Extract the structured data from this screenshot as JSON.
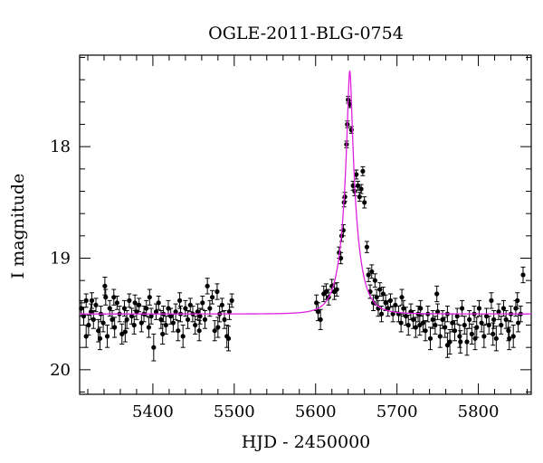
{
  "chart_data": {
    "type": "scatter",
    "title": "OGLE-2011-BLG-0754",
    "xlabel": "HJD - 2450000",
    "ylabel": "I magnitude",
    "xlim": [
      5310,
      5865
    ],
    "ylim": [
      20.22,
      17.18
    ],
    "y_inverted": true,
    "x_ticks": [
      5400,
      5500,
      5600,
      5700,
      5800
    ],
    "y_ticks": [
      18,
      19,
      20
    ],
    "grid": false,
    "colors": {
      "points": "#000000",
      "model": "#e020e0",
      "frame": "#000000"
    },
    "model": {
      "t0": 5642,
      "tE": 18,
      "u0": 0.135,
      "baseline_mag": 19.5,
      "color": "#e020e0"
    },
    "series": [
      {
        "points": [
          [
            5312,
            19.45,
            0.07
          ],
          [
            5315,
            19.52,
            0.08
          ],
          [
            5318,
            19.38,
            0.06
          ],
          [
            5321,
            19.6,
            0.09
          ],
          [
            5324,
            19.48,
            0.07
          ],
          [
            5327,
            19.55,
            0.08
          ],
          [
            5330,
            19.42,
            0.06
          ],
          [
            5333,
            19.65,
            0.1
          ],
          [
            5336,
            19.5,
            0.07
          ],
          [
            5339,
            19.58,
            0.08
          ],
          [
            5342,
            19.35,
            0.07
          ],
          [
            5344,
            19.7,
            0.1
          ],
          [
            5347,
            19.45,
            0.07
          ],
          [
            5350,
            19.55,
            0.08
          ],
          [
            5353,
            19.62,
            0.09
          ],
          [
            5356,
            19.4,
            0.06
          ],
          [
            5359,
            19.5,
            0.07
          ],
          [
            5362,
            19.68,
            0.09
          ],
          [
            5365,
            19.45,
            0.07
          ],
          [
            5368,
            19.55,
            0.08
          ],
          [
            5371,
            19.38,
            0.06
          ],
          [
            5374,
            19.52,
            0.07
          ],
          [
            5377,
            19.6,
            0.08
          ],
          [
            5380,
            19.48,
            0.07
          ],
          [
            5383,
            19.42,
            0.06
          ],
          [
            5386,
            19.58,
            0.08
          ],
          [
            5389,
            19.5,
            0.07
          ],
          [
            5392,
            19.45,
            0.07
          ],
          [
            5395,
            19.62,
            0.09
          ],
          [
            5398,
            19.52,
            0.07
          ],
          [
            5401,
            19.8,
            0.12
          ],
          [
            5404,
            19.48,
            0.07
          ],
          [
            5407,
            19.4,
            0.06
          ],
          [
            5410,
            19.55,
            0.08
          ],
          [
            5413,
            19.5,
            0.07
          ],
          [
            5416,
            19.6,
            0.08
          ],
          [
            5419,
            19.45,
            0.07
          ],
          [
            5422,
            19.52,
            0.07
          ],
          [
            5425,
            19.58,
            0.08
          ],
          [
            5428,
            19.48,
            0.07
          ],
          [
            5431,
            19.65,
            0.09
          ],
          [
            5434,
            19.5,
            0.07
          ],
          [
            5437,
            19.7,
            0.1
          ],
          [
            5440,
            19.45,
            0.07
          ],
          [
            5443,
            19.55,
            0.08
          ],
          [
            5446,
            19.42,
            0.06
          ],
          [
            5449,
            19.5,
            0.07
          ],
          [
            5452,
            19.6,
            0.08
          ],
          [
            5455,
            19.48,
            0.07
          ],
          [
            5458,
            19.52,
            0.07
          ],
          [
            5461,
            19.4,
            0.06
          ],
          [
            5464,
            19.55,
            0.08
          ],
          [
            5467,
            19.25,
            0.07
          ],
          [
            5470,
            19.45,
            0.07
          ],
          [
            5473,
            19.35,
            0.06
          ],
          [
            5476,
            19.65,
            0.09
          ],
          [
            5479,
            19.3,
            0.07
          ],
          [
            5482,
            19.5,
            0.07
          ],
          [
            5485,
            19.42,
            0.06
          ],
          [
            5488,
            19.55,
            0.08
          ],
          [
            5491,
            19.7,
            0.1
          ],
          [
            5494,
            19.48,
            0.07
          ],
          [
            5497,
            19.38,
            0.06
          ],
          [
            5318,
            19.7,
            0.1
          ],
          [
            5325,
            19.38,
            0.07
          ],
          [
            5335,
            19.72,
            0.1
          ],
          [
            5341,
            19.25,
            0.08
          ],
          [
            5352,
            19.35,
            0.07
          ],
          [
            5366,
            19.66,
            0.09
          ],
          [
            5378,
            19.4,
            0.07
          ],
          [
            5396,
            19.35,
            0.07
          ],
          [
            5412,
            19.68,
            0.09
          ],
          [
            5433,
            19.38,
            0.07
          ],
          [
            5457,
            19.65,
            0.09
          ],
          [
            5480,
            19.62,
            0.09
          ],
          [
            5493,
            19.72,
            0.11
          ],
          [
            5601,
            19.4,
            0.07
          ],
          [
            5603,
            19.48,
            0.08
          ],
          [
            5606,
            19.55,
            0.09
          ],
          [
            5610,
            19.32,
            0.07
          ],
          [
            5613,
            19.3,
            0.07
          ],
          [
            5616,
            19.35,
            0.07
          ],
          [
            5620,
            19.25,
            0.06
          ],
          [
            5623,
            19.3,
            0.07
          ],
          [
            5626,
            19.28,
            0.06
          ],
          [
            5629,
            18.95,
            0.05
          ],
          [
            5631,
            19.0,
            0.05
          ],
          [
            5632,
            18.8,
            0.05
          ],
          [
            5634,
            18.75,
            0.05
          ],
          [
            5635,
            18.5,
            0.04
          ],
          [
            5636,
            18.45,
            0.04
          ],
          [
            5638,
            17.98,
            0.03
          ],
          [
            5639,
            17.8,
            0.03
          ],
          [
            5640,
            17.58,
            0.03
          ],
          [
            5642,
            17.62,
            0.03
          ],
          [
            5644,
            17.85,
            0.03
          ],
          [
            5646,
            18.35,
            0.04
          ],
          [
            5648,
            18.4,
            0.04
          ],
          [
            5650,
            18.25,
            0.04
          ],
          [
            5652,
            18.35,
            0.04
          ],
          [
            5654,
            18.45,
            0.04
          ],
          [
            5656,
            18.38,
            0.04
          ],
          [
            5658,
            18.22,
            0.04
          ],
          [
            5660,
            18.5,
            0.05
          ],
          [
            5663,
            18.9,
            0.05
          ],
          [
            5665,
            19.15,
            0.06
          ],
          [
            5667,
            19.3,
            0.06
          ],
          [
            5669,
            19.12,
            0.06
          ],
          [
            5671,
            19.4,
            0.07
          ],
          [
            5673,
            19.2,
            0.06
          ],
          [
            5675,
            19.35,
            0.07
          ],
          [
            5677,
            19.45,
            0.07
          ],
          [
            5679,
            19.28,
            0.06
          ],
          [
            5681,
            19.5,
            0.07
          ],
          [
            5683,
            19.32,
            0.06
          ],
          [
            5686,
            19.4,
            0.07
          ],
          [
            5689,
            19.45,
            0.07
          ],
          [
            5692,
            19.38,
            0.06
          ],
          [
            5695,
            19.5,
            0.07
          ],
          [
            5698,
            19.42,
            0.06
          ],
          [
            5702,
            19.5,
            0.07
          ],
          [
            5705,
            19.58,
            0.08
          ],
          [
            5708,
            19.45,
            0.07
          ],
          [
            5711,
            19.52,
            0.08
          ],
          [
            5714,
            19.6,
            0.09
          ],
          [
            5717,
            19.48,
            0.07
          ],
          [
            5720,
            19.55,
            0.08
          ],
          [
            5723,
            19.62,
            0.09
          ],
          [
            5726,
            19.5,
            0.07
          ],
          [
            5729,
            19.45,
            0.07
          ],
          [
            5732,
            19.58,
            0.08
          ],
          [
            5735,
            19.65,
            0.09
          ],
          [
            5738,
            19.5,
            0.07
          ],
          [
            5741,
            19.72,
            0.1
          ],
          [
            5744,
            19.55,
            0.08
          ],
          [
            5747,
            19.6,
            0.08
          ],
          [
            5750,
            19.48,
            0.07
          ],
          [
            5753,
            19.7,
            0.1
          ],
          [
            5756,
            19.55,
            0.08
          ],
          [
            5759,
            19.62,
            0.09
          ],
          [
            5762,
            19.5,
            0.07
          ],
          [
            5765,
            19.75,
            0.11
          ],
          [
            5768,
            19.58,
            0.08
          ],
          [
            5771,
            19.65,
            0.09
          ],
          [
            5774,
            19.52,
            0.07
          ],
          [
            5777,
            19.7,
            0.1
          ],
          [
            5780,
            19.45,
            0.07
          ],
          [
            5783,
            19.6,
            0.08
          ],
          [
            5786,
            19.75,
            0.12
          ],
          [
            5789,
            19.55,
            0.08
          ],
          [
            5792,
            19.68,
            0.09
          ],
          [
            5795,
            19.5,
            0.07
          ],
          [
            5798,
            19.62,
            0.09
          ],
          [
            5801,
            19.45,
            0.07
          ],
          [
            5804,
            19.58,
            0.08
          ],
          [
            5807,
            19.7,
            0.1
          ],
          [
            5810,
            19.52,
            0.07
          ],
          [
            5813,
            19.6,
            0.08
          ],
          [
            5816,
            19.38,
            0.07
          ],
          [
            5819,
            19.55,
            0.08
          ],
          [
            5822,
            19.72,
            0.11
          ],
          [
            5825,
            19.48,
            0.07
          ],
          [
            5828,
            19.6,
            0.08
          ],
          [
            5831,
            19.45,
            0.07
          ],
          [
            5834,
            19.55,
            0.08
          ],
          [
            5837,
            19.65,
            0.09
          ],
          [
            5840,
            19.5,
            0.07
          ],
          [
            5843,
            19.7,
            0.1
          ],
          [
            5846,
            19.45,
            0.07
          ],
          [
            5849,
            19.58,
            0.08
          ],
          [
            5852,
            19.5,
            0.07
          ],
          [
            5855,
            19.15,
            0.07
          ],
          [
            5706,
            19.35,
            0.07
          ],
          [
            5728,
            19.6,
            0.09
          ],
          [
            5749,
            19.32,
            0.07
          ],
          [
            5762,
            19.78,
            0.11
          ],
          [
            5778,
            19.75,
            0.1
          ],
          [
            5796,
            19.72,
            0.1
          ],
          [
            5818,
            19.68,
            0.1
          ],
          [
            5838,
            19.72,
            0.1
          ],
          [
            5848,
            19.38,
            0.07
          ]
        ]
      }
    ]
  }
}
